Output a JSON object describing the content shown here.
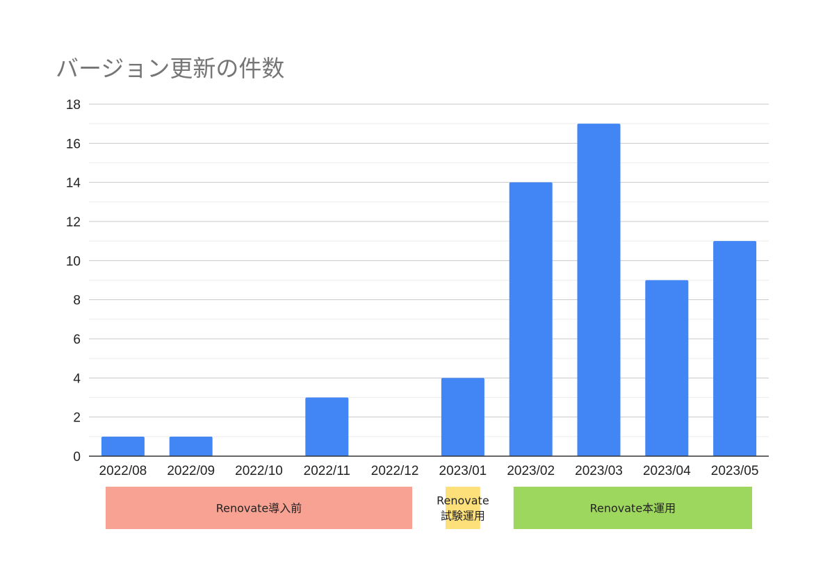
{
  "chart_data": {
    "type": "bar",
    "title": "バージョン更新の件数",
    "xlabel": "",
    "ylabel": "",
    "categories": [
      "2022/08",
      "2022/09",
      "2022/10",
      "2022/11",
      "2022/12",
      "2023/01",
      "2023/02",
      "2023/03",
      "2023/04",
      "2023/05"
    ],
    "values": [
      1,
      1,
      0,
      3,
      0,
      4,
      14,
      17,
      9,
      11
    ],
    "ylim": [
      0,
      18
    ],
    "yticks": [
      "0",
      "2",
      "4",
      "6",
      "8",
      "10",
      "12",
      "14",
      "16",
      "18"
    ],
    "grid": true,
    "bar_color": "#4285f4",
    "legend": "none",
    "phases": [
      {
        "lines": [
          "Renovate導入前"
        ],
        "from": "2022/08",
        "to": "2022/12",
        "color": "#f7a293"
      },
      {
        "lines": [
          "Renovate",
          "試験運用"
        ],
        "from": "2023/01",
        "to": "2023/01",
        "color": "#fde07a"
      },
      {
        "lines": [
          "Renovate本運用"
        ],
        "from": "2023/02",
        "to": "2023/05",
        "color": "#9ed75d"
      }
    ]
  }
}
